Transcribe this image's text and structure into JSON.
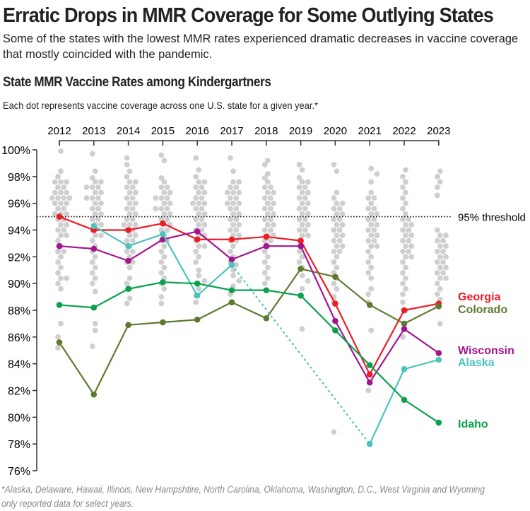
{
  "header": {
    "title": "Erratic Drops in MMR Coverage for Some Outlying States",
    "subtitle": "Some of the states with the lowest MMR rates experienced dramatic decreases in vaccine coverage that mostly coincided with the pandemic."
  },
  "chart_data": {
    "type": "line",
    "title": "State MMR Vaccine Rates among Kindergartners",
    "note": "Each dot represents vaccine coverage across one U.S. state for a given year.*",
    "footnote_line1": "*Alaska, Delaware, Hawaii, Illinois, New Hampshtire, North Carolina, Oklahoma, Washington, D.C., West Virginia and Wyoming",
    "footnote_line2": "only reported data for select years.",
    "x": [
      2012,
      2013,
      2014,
      2015,
      2016,
      2017,
      2018,
      2019,
      2020,
      2021,
      2022,
      2023
    ],
    "x_tick_labels": [
      "2012",
      "2013",
      "2014",
      "2015",
      "2016",
      "2017",
      "2018",
      "2019",
      "2020",
      "2021",
      "2022",
      "2023"
    ],
    "ylim": [
      76,
      100
    ],
    "y_ticks": [
      100,
      98,
      96,
      94,
      92,
      90,
      88,
      86,
      84,
      82,
      80,
      78,
      76
    ],
    "y_tick_labels": [
      "100%",
      "98%",
      "96%",
      "94%",
      "92%",
      "90%",
      "88%",
      "86%",
      "84%",
      "82%",
      "80%",
      "78%",
      "76%"
    ],
    "threshold": {
      "value": 95,
      "label": "95% threshold"
    },
    "series": [
      {
        "name": "Georgia",
        "color": "#ee1c25",
        "values": [
          95.0,
          94.0,
          94.0,
          94.5,
          93.3,
          93.3,
          93.5,
          93.2,
          88.5,
          83.2,
          88.0,
          88.5
        ]
      },
      {
        "name": "Colorado",
        "color": "#5e7a2e",
        "values": [
          85.6,
          81.7,
          86.9,
          87.1,
          87.3,
          88.6,
          87.4,
          91.1,
          90.5,
          88.4,
          87.0,
          88.3
        ]
      },
      {
        "name": "Wisconsin",
        "color": "#a3158f",
        "values": [
          92.8,
          92.6,
          91.7,
          93.3,
          93.9,
          91.8,
          92.8,
          92.8,
          87.2,
          82.6,
          86.6,
          84.8
        ]
      },
      {
        "name": "Alaska",
        "color": "#4cc3bf",
        "values": [
          null,
          94.3,
          92.8,
          93.7,
          89.1,
          91.4,
          null,
          null,
          null,
          78.0,
          83.6,
          84.3
        ]
      },
      {
        "name": "Idaho",
        "color": "#0aa14c",
        "values": [
          88.4,
          88.2,
          89.6,
          90.1,
          90.0,
          89.5,
          89.5,
          89.1,
          86.5,
          83.9,
          81.3,
          79.6
        ]
      }
    ],
    "all_states_color": "#cfcfcf",
    "all_states": [
      [
        99.9,
        98.4,
        98.0,
        97.6,
        97.6,
        97.6,
        97.2,
        97.2,
        96.8,
        96.8,
        96.8,
        96.4,
        96.4,
        96.4,
        96.4,
        96.0,
        96.0,
        96.0,
        95.6,
        95.6,
        95.2,
        95.2,
        95.2,
        94.8,
        94.8,
        94.4,
        94.4,
        94.0,
        94.0,
        93.6,
        93.6,
        93.2,
        92.8,
        92.4,
        92.4,
        92.0,
        91.6,
        91.2,
        90.8,
        90.4,
        90.4,
        90.0,
        89.6,
        87.0,
        86.0,
        85.2
      ],
      [
        99.7,
        98.4,
        97.9,
        97.6,
        97.6,
        97.2,
        97.2,
        97.2,
        96.8,
        96.8,
        96.4,
        96.4,
        96.4,
        96.0,
        96.0,
        95.6,
        95.6,
        95.2,
        95.2,
        94.8,
        94.8,
        94.4,
        94.4,
        94.0,
        93.6,
        93.6,
        93.2,
        92.8,
        92.4,
        92.0,
        91.6,
        91.2,
        90.8,
        90.4,
        90.0,
        89.4,
        87.0,
        86.5,
        85.3
      ],
      [
        99.4,
        98.9,
        98.4,
        98.0,
        97.6,
        97.6,
        97.2,
        97.2,
        96.8,
        96.8,
        96.4,
        96.4,
        96.0,
        96.0,
        95.6,
        95.6,
        95.2,
        95.2,
        94.8,
        94.8,
        94.4,
        94.4,
        94.4,
        94.0,
        94.0,
        93.6,
        93.6,
        93.2,
        93.2,
        92.8,
        92.4,
        92.4,
        92.0,
        91.6,
        91.6,
        91.2,
        90.4,
        90.0,
        89.6,
        88.9,
        88.5
      ],
      [
        99.6,
        99.2,
        97.9,
        97.6,
        97.2,
        97.2,
        96.8,
        96.8,
        96.4,
        96.4,
        96.4,
        96.0,
        96.0,
        95.6,
        95.6,
        95.6,
        95.2,
        95.2,
        94.8,
        94.8,
        94.4,
        94.4,
        94.0,
        94.0,
        93.6,
        93.2,
        93.2,
        92.8,
        92.4,
        92.0,
        91.6,
        91.2,
        90.8,
        90.4,
        90.0,
        89.6,
        89.0,
        88.5
      ],
      [
        99.4,
        98.5,
        98.0,
        97.6,
        97.6,
        97.2,
        97.2,
        96.8,
        96.8,
        96.4,
        96.4,
        96.0,
        96.0,
        96.0,
        95.6,
        95.6,
        95.2,
        95.2,
        94.8,
        94.8,
        94.4,
        94.4,
        94.0,
        94.0,
        93.6,
        93.6,
        93.2,
        92.8,
        92.8,
        92.4,
        92.0,
        91.6,
        91.0,
        90.6,
        90.2,
        89.6,
        89.1,
        88.6
      ],
      [
        99.4,
        98.4,
        97.6,
        97.6,
        97.2,
        97.2,
        96.8,
        96.8,
        96.8,
        96.4,
        96.4,
        96.0,
        96.0,
        96.0,
        95.6,
        95.6,
        95.2,
        95.2,
        94.8,
        94.8,
        94.4,
        94.4,
        94.0,
        94.0,
        93.6,
        93.6,
        93.2,
        93.2,
        92.8,
        92.4,
        92.0,
        91.6,
        91.4,
        91.0,
        90.6,
        90.2,
        89.8,
        89.2
      ],
      [
        99.2,
        98.9,
        98.2,
        97.9,
        97.6,
        97.2,
        97.2,
        96.8,
        96.8,
        96.4,
        96.4,
        96.0,
        96.0,
        95.6,
        95.6,
        95.2,
        95.2,
        94.8,
        94.8,
        94.4,
        94.4,
        94.0,
        94.0,
        93.6,
        93.6,
        93.2,
        93.2,
        92.8,
        92.4,
        92.0,
        91.6,
        91.2,
        90.8,
        90.4,
        90.0
      ],
      [
        98.9,
        98.5,
        97.9,
        97.6,
        97.6,
        97.2,
        97.2,
        96.8,
        96.8,
        96.4,
        96.4,
        96.0,
        96.0,
        95.6,
        95.6,
        95.2,
        95.2,
        94.8,
        94.8,
        94.4,
        94.4,
        94.0,
        94.0,
        93.6,
        93.6,
        93.2,
        92.8,
        92.4,
        92.0,
        91.6,
        91.2,
        90.6,
        90.2,
        89.6,
        86.6
      ],
      [
        98.9,
        98.4,
        96.8,
        96.4,
        96.0,
        96.0,
        95.6,
        95.6,
        95.2,
        95.2,
        94.8,
        94.8,
        94.4,
        94.4,
        94.0,
        94.0,
        93.6,
        93.6,
        93.2,
        93.2,
        92.8,
        92.8,
        92.4,
        92.4,
        92.0,
        91.6,
        91.2,
        90.8,
        90.4,
        90.0,
        89.6,
        89.0,
        88.6,
        78.9
      ],
      [
        98.6,
        98.2,
        97.6,
        96.8,
        96.4,
        96.4,
        96.0,
        95.6,
        95.6,
        95.2,
        95.2,
        94.8,
        94.8,
        94.4,
        94.4,
        94.0,
        94.0,
        93.6,
        93.6,
        93.2,
        93.2,
        92.8,
        92.8,
        92.4,
        92.0,
        91.6,
        91.2,
        90.8,
        90.4,
        89.6,
        89.2,
        88.6,
        86.5,
        82.0
      ],
      [
        98.5,
        98.0,
        97.6,
        97.2,
        96.8,
        96.4,
        96.0,
        95.6,
        95.2,
        94.8,
        94.8,
        94.4,
        94.4,
        94.0,
        94.0,
        93.6,
        93.6,
        93.2,
        93.2,
        92.8,
        92.8,
        92.4,
        92.4,
        92.0,
        92.0,
        91.6,
        91.2,
        90.8,
        90.4,
        90.0,
        89.6,
        89.2,
        88.6,
        88.0,
        86.0
      ],
      [
        98.4,
        98.0,
        97.6,
        97.2,
        96.6,
        94.0,
        93.6,
        93.6,
        93.2,
        93.2,
        92.8,
        92.8,
        92.4,
        92.4,
        92.0,
        92.0,
        91.6,
        91.6,
        91.2,
        91.2,
        90.8,
        90.8,
        90.4,
        90.4,
        90.0,
        89.6,
        89.2,
        88.8,
        88.4,
        87.0
      ]
    ]
  }
}
